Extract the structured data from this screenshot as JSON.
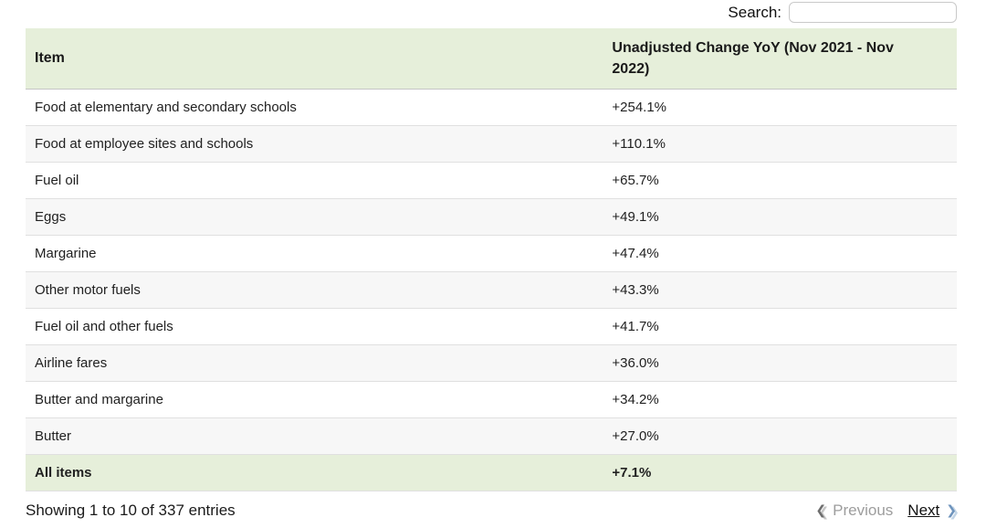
{
  "search": {
    "label": "Search:",
    "value": "",
    "placeholder": ""
  },
  "table": {
    "columns": [
      "Item",
      "Unadjusted Change YoY (Nov 2021 - Nov 2022)"
    ],
    "rows": [
      {
        "item": "Food at elementary and secondary schools",
        "change": "+254.1%",
        "highlight": false
      },
      {
        "item": "Food at employee sites and schools",
        "change": "+110.1%",
        "highlight": false
      },
      {
        "item": "Fuel oil",
        "change": "+65.7%",
        "highlight": false
      },
      {
        "item": "Eggs",
        "change": "+49.1%",
        "highlight": false
      },
      {
        "item": "Margarine",
        "change": "+47.4%",
        "highlight": false
      },
      {
        "item": "Other motor fuels",
        "change": "+43.3%",
        "highlight": false
      },
      {
        "item": "Fuel oil and other fuels",
        "change": "+41.7%",
        "highlight": false
      },
      {
        "item": "Airline fares",
        "change": "+36.0%",
        "highlight": false
      },
      {
        "item": "Butter and margarine",
        "change": "+34.2%",
        "highlight": false
      },
      {
        "item": "Butter",
        "change": "+27.0%",
        "highlight": false
      },
      {
        "item": "All items",
        "change": "+7.1%",
        "highlight": true
      }
    ]
  },
  "footer": {
    "info": "Showing 1 to 10 of 337 entries",
    "previous_label": "Previous",
    "next_label": "Next"
  },
  "icons": {
    "chevron_left": "❮",
    "chevron_right": "❯"
  },
  "colors": {
    "header_bg": "#e6efda",
    "highlight_row_bg": "#e6efda",
    "stripe_bg": "#f7f7f7",
    "next_chevron": "#6f94bd",
    "prev_chevron": "#6e6e6e",
    "disabled_text": "#9d9d9d"
  }
}
